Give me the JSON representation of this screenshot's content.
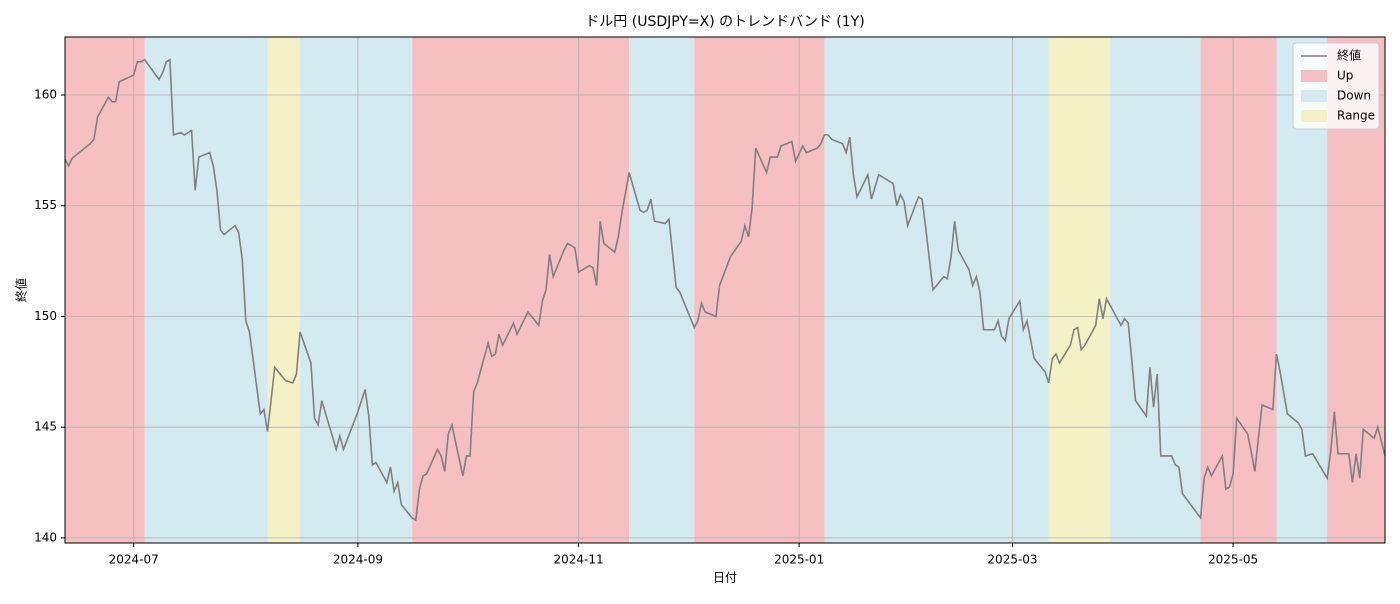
{
  "chart_data": {
    "type": "line",
    "title": "ドル円 (USDJPY=X) のトレンドバンド (1Y)",
    "x_label": "日付",
    "y_label": "終値",
    "xlim": [
      "2024-06-12",
      "2025-06-12"
    ],
    "xticks": [
      {
        "value": "2024-07-01",
        "label": "2024-07"
      },
      {
        "value": "2024-09-01",
        "label": "2024-09"
      },
      {
        "value": "2024-11-01",
        "label": "2024-11"
      },
      {
        "value": "2025-01-01",
        "label": "2025-01"
      },
      {
        "value": "2025-03-01",
        "label": "2025-03"
      },
      {
        "value": "2025-05-01",
        "label": "2025-05"
      }
    ],
    "ylim": [
      139.77,
      162.62
    ],
    "yticks": [
      140,
      145,
      150,
      155,
      160
    ],
    "grid": true,
    "legend": "upper right",
    "band_legend": [
      {
        "name": "Up",
        "color": "#f6bfc1"
      },
      {
        "name": "Down",
        "color": "#d3eaf1"
      },
      {
        "name": "Range",
        "color": "#f5f1c7"
      }
    ],
    "bands": [
      {
        "start": "2024-06-12",
        "end": "2024-07-04",
        "trend": 0
      },
      {
        "start": "2024-07-04",
        "end": "2024-08-07",
        "trend": 1
      },
      {
        "start": "2024-08-07",
        "end": "2024-08-16",
        "trend": 2
      },
      {
        "start": "2024-08-16",
        "end": "2024-09-16",
        "trend": 1
      },
      {
        "start": "2024-09-16",
        "end": "2024-11-15",
        "trend": 0
      },
      {
        "start": "2024-11-15",
        "end": "2024-12-03",
        "trend": 1
      },
      {
        "start": "2024-12-03",
        "end": "2025-01-08",
        "trend": 0
      },
      {
        "start": "2025-01-08",
        "end": "2025-03-11",
        "trend": 1
      },
      {
        "start": "2025-03-11",
        "end": "2025-03-28",
        "trend": 2
      },
      {
        "start": "2025-03-28",
        "end": "2025-04-22",
        "trend": 1
      },
      {
        "start": "2025-04-22",
        "end": "2025-05-13",
        "trend": 0
      },
      {
        "start": "2025-05-13",
        "end": "2025-05-27",
        "trend": 1
      },
      {
        "start": "2025-05-27",
        "end": "2025-06-12",
        "trend": 0
      }
    ],
    "x": [
      "2024-06-12",
      "2024-06-13",
      "2024-06-14",
      "2024-06-19",
      "2024-06-20",
      "2024-06-21",
      "2024-06-24",
      "2024-06-25",
      "2024-06-26",
      "2024-06-27",
      "2024-07-01",
      "2024-07-02",
      "2024-07-03",
      "2024-07-04",
      "2024-07-08",
      "2024-07-09",
      "2024-07-10",
      "2024-07-11",
      "2024-07-12",
      "2024-07-14",
      "2024-07-15",
      "2024-07-17",
      "2024-07-18",
      "2024-07-19",
      "2024-07-22",
      "2024-07-23",
      "2024-07-24",
      "2024-07-25",
      "2024-07-26",
      "2024-07-29",
      "2024-07-30",
      "2024-07-31",
      "2024-08-01",
      "2024-08-02",
      "2024-08-05",
      "2024-08-06",
      "2024-08-07",
      "2024-08-09",
      "2024-08-12",
      "2024-08-14",
      "2024-08-15",
      "2024-08-16",
      "2024-08-19",
      "2024-08-20",
      "2024-08-21",
      "2024-08-22",
      "2024-08-26",
      "2024-08-27",
      "2024-08-28",
      "2024-09-01",
      "2024-09-03",
      "2024-09-04",
      "2024-09-05",
      "2024-09-06",
      "2024-09-09",
      "2024-09-10",
      "2024-09-11",
      "2024-09-12",
      "2024-09-13",
      "2024-09-16",
      "2024-09-17",
      "2024-09-18",
      "2024-09-19",
      "2024-09-20",
      "2024-09-23",
      "2024-09-24",
      "2024-09-25",
      "2024-09-26",
      "2024-09-27",
      "2024-09-30",
      "2024-10-01",
      "2024-10-02",
      "2024-10-03",
      "2024-10-04",
      "2024-10-07",
      "2024-10-08",
      "2024-10-09",
      "2024-10-10",
      "2024-10-11",
      "2024-10-14",
      "2024-10-15",
      "2024-10-18",
      "2024-10-21",
      "2024-10-22",
      "2024-10-23",
      "2024-10-24",
      "2024-10-25",
      "2024-10-28",
      "2024-10-29",
      "2024-10-31",
      "2024-11-01",
      "2024-11-04",
      "2024-11-05",
      "2024-11-06",
      "2024-11-07",
      "2024-11-08",
      "2024-11-11",
      "2024-11-12",
      "2024-11-13",
      "2024-11-15",
      "2024-11-18",
      "2024-11-19",
      "2024-11-20",
      "2024-11-21",
      "2024-11-22",
      "2024-11-25",
      "2024-11-26",
      "2024-11-28",
      "2024-11-29",
      "2024-12-03",
      "2024-12-04",
      "2024-12-05",
      "2024-12-06",
      "2024-12-09",
      "2024-12-10",
      "2024-12-13",
      "2024-12-16",
      "2024-12-17",
      "2024-12-18",
      "2024-12-19",
      "2024-12-20",
      "2024-12-23",
      "2024-12-24",
      "2024-12-26",
      "2024-12-27",
      "2024-12-30",
      "2024-12-31",
      "2025-01-02",
      "2025-01-03",
      "2025-01-06",
      "2025-01-07",
      "2025-01-08",
      "2025-01-09",
      "2025-01-10",
      "2025-01-13",
      "2025-01-14",
      "2025-01-15",
      "2025-01-16",
      "2025-01-17",
      "2025-01-20",
      "2025-01-21",
      "2025-01-23",
      "2025-01-27",
      "2025-01-28",
      "2025-01-29",
      "2025-01-30",
      "2025-01-31",
      "2025-02-03",
      "2025-02-04",
      "2025-02-05",
      "2025-02-07",
      "2025-02-10",
      "2025-02-11",
      "2025-02-12",
      "2025-02-13",
      "2025-02-14",
      "2025-02-17",
      "2025-02-18",
      "2025-02-19",
      "2025-02-20",
      "2025-02-21",
      "2025-02-24",
      "2025-02-25",
      "2025-02-26",
      "2025-02-27",
      "2025-02-28",
      "2025-03-03",
      "2025-03-04",
      "2025-03-05",
      "2025-03-07",
      "2025-03-10",
      "2025-03-11",
      "2025-03-12",
      "2025-03-13",
      "2025-03-14",
      "2025-03-17",
      "2025-03-18",
      "2025-03-19",
      "2025-03-20",
      "2025-03-21",
      "2025-03-24",
      "2025-03-25",
      "2025-03-26",
      "2025-03-27",
      "2025-03-31",
      "2025-04-01",
      "2025-04-02",
      "2025-04-03",
      "2025-04-04",
      "2025-04-07",
      "2025-04-08",
      "2025-04-09",
      "2025-04-10",
      "2025-04-11",
      "2025-04-14",
      "2025-04-15",
      "2025-04-16",
      "2025-04-17",
      "2025-04-22",
      "2025-04-23",
      "2025-04-24",
      "2025-04-25",
      "2025-04-28",
      "2025-04-29",
      "2025-04-30",
      "2025-05-01",
      "2025-05-02",
      "2025-05-05",
      "2025-05-06",
      "2025-05-07",
      "2025-05-09",
      "2025-05-12",
      "2025-05-13",
      "2025-05-14",
      "2025-05-16",
      "2025-05-19",
      "2025-05-20",
      "2025-05-21",
      "2025-05-23",
      "2025-05-27",
      "2025-05-28",
      "2025-05-29",
      "2025-05-30",
      "2025-06-02",
      "2025-06-03",
      "2025-06-04",
      "2025-06-05",
      "2025-06-06",
      "2025-06-09",
      "2025-06-10",
      "2025-06-12"
    ],
    "series": [
      {
        "name": "終値",
        "color": "#808080",
        "values": [
          157.1,
          156.8,
          157.15,
          157.8,
          158.0,
          159.0,
          159.9,
          159.7,
          159.7,
          160.6,
          160.9,
          161.5,
          161.5,
          161.6,
          160.7,
          161.0,
          161.5,
          161.6,
          158.2,
          158.3,
          158.2,
          158.4,
          155.7,
          157.2,
          157.4,
          156.8,
          155.7,
          153.9,
          153.7,
          154.1,
          153.8,
          152.6,
          149.8,
          149.3,
          145.6,
          145.8,
          144.8,
          147.7,
          147.1,
          147.0,
          147.4,
          149.3,
          147.9,
          145.4,
          145.1,
          146.2,
          144.0,
          144.6,
          144.0,
          145.7,
          146.7,
          145.5,
          143.3,
          143.4,
          142.5,
          143.2,
          142.1,
          142.5,
          141.5,
          140.9,
          140.8,
          142.2,
          142.8,
          142.9,
          144.0,
          143.7,
          143.0,
          144.7,
          145.1,
          142.8,
          143.7,
          143.7,
          146.6,
          147.0,
          148.8,
          148.2,
          148.3,
          149.2,
          148.7,
          149.7,
          149.2,
          150.2,
          149.6,
          150.7,
          151.2,
          152.8,
          151.8,
          153.0,
          153.3,
          153.1,
          152.0,
          152.3,
          152.2,
          151.4,
          154.3,
          153.3,
          152.9,
          153.6,
          154.7,
          156.5,
          154.8,
          154.7,
          154.8,
          155.3,
          154.3,
          154.2,
          154.4,
          151.3,
          151.1,
          149.5,
          149.8,
          150.6,
          150.2,
          150.0,
          151.4,
          152.7,
          153.4,
          154.1,
          153.6,
          154.9,
          157.6,
          156.5,
          157.2,
          157.2,
          157.7,
          157.9,
          157.0,
          157.7,
          157.4,
          157.6,
          157.8,
          158.2,
          158.2,
          158.0,
          157.8,
          157.4,
          158.1,
          156.4,
          155.4,
          156.4,
          155.3,
          156.4,
          156.0,
          155.0,
          155.5,
          155.2,
          154.1,
          155.4,
          155.3,
          154.0,
          151.2,
          151.8,
          151.7,
          152.7,
          154.3,
          153.0,
          152.1,
          151.4,
          151.8,
          151.1,
          149.4,
          149.4,
          149.8,
          149.1,
          148.9,
          149.9,
          150.7,
          149.4,
          149.8,
          148.1,
          147.5,
          147.0,
          148.1,
          148.3,
          147.9,
          148.7,
          149.4,
          149.5,
          148.5,
          148.7,
          149.6,
          150.8,
          149.9,
          150.8,
          149.6,
          149.9,
          149.7,
          148.0,
          146.2,
          145.5,
          147.7,
          145.9,
          147.4,
          143.7,
          143.7,
          143.3,
          143.2,
          142.0,
          140.9,
          142.7,
          143.2,
          142.8,
          143.7,
          142.2,
          142.3,
          142.9,
          145.4,
          144.7,
          143.9,
          143.0,
          146.0,
          145.8,
          148.3,
          147.5,
          145.6,
          145.2,
          144.9,
          143.7,
          143.8,
          142.7,
          143.9,
          145.7,
          143.8,
          143.8,
          142.5,
          143.8,
          142.7,
          144.9,
          144.5,
          145.0,
          143.7
        ]
      }
    ]
  }
}
